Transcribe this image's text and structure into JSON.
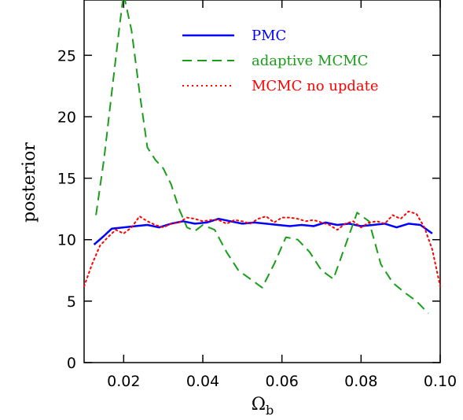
{
  "chart_data": {
    "type": "line",
    "title": "",
    "xlabel": "Ω",
    "xlabel_subscript": "b",
    "ylabel": "posterior",
    "xlim": [
      0.01,
      0.1
    ],
    "ylim": [
      0,
      29.5
    ],
    "x_ticks": [
      0.02,
      0.04,
      0.06,
      0.08,
      0.1
    ],
    "x_tick_labels": [
      "0.02",
      "0.04",
      "0.06",
      "0.08",
      "0.10"
    ],
    "y_ticks": [
      0,
      5,
      10,
      15,
      20,
      25
    ],
    "y_tick_labels": [
      "0",
      "5",
      "10",
      "15",
      "20",
      "25"
    ],
    "grid": false,
    "legend_position": "top-right",
    "series": [
      {
        "name": "PMC",
        "color": "#0000ff",
        "style": "solid",
        "x": [
          0.0125,
          0.015,
          0.017,
          0.02,
          0.023,
          0.026,
          0.029,
          0.032,
          0.035,
          0.038,
          0.041,
          0.044,
          0.047,
          0.05,
          0.053,
          0.056,
          0.059,
          0.062,
          0.065,
          0.068,
          0.071,
          0.074,
          0.077,
          0.08,
          0.083,
          0.086,
          0.089,
          0.092,
          0.095,
          0.098
        ],
        "y": [
          9.6,
          10.3,
          10.9,
          11.0,
          11.1,
          11.2,
          11.0,
          11.3,
          11.5,
          11.3,
          11.4,
          11.7,
          11.5,
          11.3,
          11.4,
          11.3,
          11.2,
          11.1,
          11.2,
          11.1,
          11.4,
          11.2,
          11.3,
          11.1,
          11.2,
          11.3,
          11.0,
          11.3,
          11.2,
          10.5
        ]
      },
      {
        "name": "adaptive MCMC",
        "color": "#1a9e1a",
        "style": "dashed",
        "x": [
          0.013,
          0.015,
          0.017,
          0.019,
          0.02,
          0.022,
          0.024,
          0.026,
          0.028,
          0.03,
          0.032,
          0.034,
          0.036,
          0.038,
          0.04,
          0.043,
          0.046,
          0.049,
          0.052,
          0.055,
          0.058,
          0.061,
          0.064,
          0.067,
          0.07,
          0.073,
          0.076,
          0.079,
          0.082,
          0.085,
          0.088,
          0.091,
          0.094,
          0.097
        ],
        "y": [
          12.0,
          16.5,
          22.0,
          27.5,
          30.0,
          27.0,
          22.0,
          17.5,
          16.5,
          15.8,
          14.5,
          12.5,
          11.0,
          10.7,
          11.2,
          10.8,
          9.0,
          7.5,
          6.8,
          6.1,
          8.0,
          10.2,
          10.0,
          9.0,
          7.5,
          6.8,
          9.5,
          12.2,
          11.5,
          8.0,
          6.5,
          5.7,
          5.0,
          4.0
        ]
      },
      {
        "name": "MCMC no update",
        "color": "#ff0000",
        "style": "dotted",
        "x": [
          0.01,
          0.012,
          0.014,
          0.016,
          0.018,
          0.02,
          0.022,
          0.024,
          0.026,
          0.028,
          0.03,
          0.032,
          0.034,
          0.036,
          0.038,
          0.04,
          0.042,
          0.044,
          0.046,
          0.048,
          0.05,
          0.052,
          0.054,
          0.056,
          0.058,
          0.06,
          0.062,
          0.064,
          0.066,
          0.068,
          0.07,
          0.072,
          0.074,
          0.076,
          0.078,
          0.08,
          0.082,
          0.084,
          0.086,
          0.088,
          0.09,
          0.092,
          0.094,
          0.096,
          0.098,
          0.1
        ],
        "y": [
          6.2,
          8.0,
          9.5,
          10.2,
          10.8,
          10.5,
          11.0,
          11.9,
          11.5,
          11.2,
          11.0,
          11.3,
          11.4,
          11.8,
          11.7,
          11.5,
          11.6,
          11.6,
          11.3,
          11.6,
          11.5,
          11.3,
          11.7,
          11.9,
          11.4,
          11.8,
          11.8,
          11.7,
          11.5,
          11.6,
          11.4,
          11.2,
          10.8,
          11.3,
          11.5,
          11.0,
          11.4,
          11.5,
          11.3,
          12.0,
          11.7,
          12.3,
          12.1,
          11.0,
          9.2,
          6.2
        ]
      }
    ]
  }
}
